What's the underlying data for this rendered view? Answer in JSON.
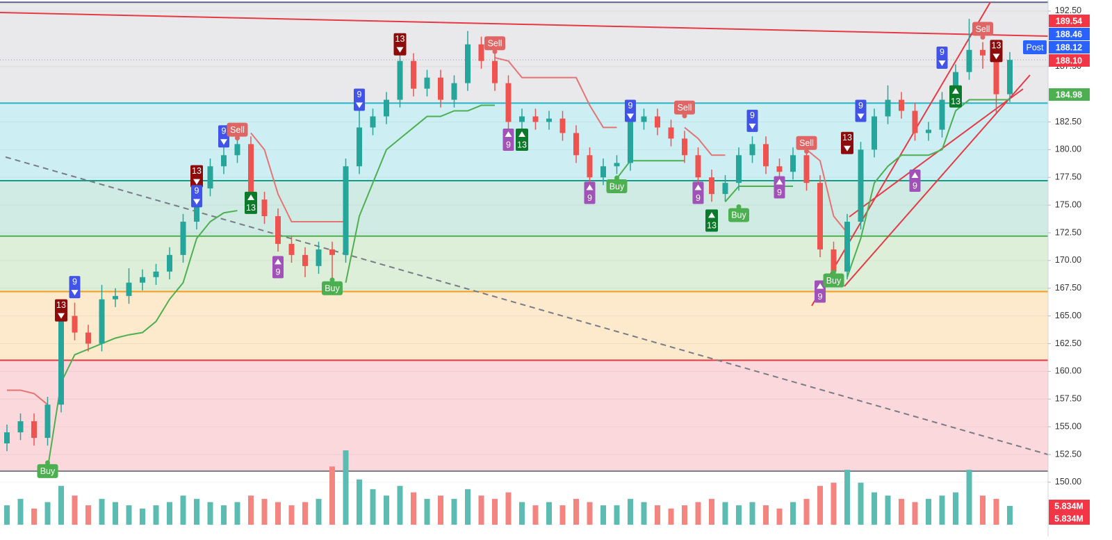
{
  "chart_data": {
    "type": "candlestick",
    "ylim": [
      145.1,
      193.5
    ],
    "yticks": [
      {
        "value": 192.5,
        "label": "192.50"
      },
      {
        "value": 187.5,
        "label": "187.50"
      },
      {
        "value": 182.5,
        "label": "182.50"
      },
      {
        "value": 180,
        "label": "180.00"
      },
      {
        "value": 177.5,
        "label": "177.50"
      },
      {
        "value": 175,
        "label": "175.00"
      },
      {
        "value": 172.5,
        "label": "172.50"
      },
      {
        "value": 170,
        "label": "170.00"
      },
      {
        "value": 167.5,
        "label": "167.50"
      },
      {
        "value": 165,
        "label": "165.00"
      },
      {
        "value": 162.5,
        "label": "162.50"
      },
      {
        "value": 160,
        "label": "160.00"
      },
      {
        "value": 157.5,
        "label": "157.50"
      },
      {
        "value": 155,
        "label": "155.00"
      },
      {
        "value": 152.5,
        "label": "152.50"
      },
      {
        "value": 150,
        "label": "150.00"
      }
    ],
    "grid": true,
    "up_color": "#26a69a",
    "down_color": "#ef5350",
    "volume_up_color": "#5dbcb2",
    "volume_down_color": "#f3847f",
    "open": [
      153.5,
      154.5,
      155.5,
      154,
      157,
      165,
      163.5,
      162.5,
      166.5,
      166.8,
      168,
      168.5,
      169,
      170.5,
      173.5,
      176.5,
      178.5,
      179.5,
      180.5,
      175.5,
      174,
      171.5,
      170.5,
      169.5,
      171,
      170.5,
      178.5,
      182,
      183,
      184.5,
      188,
      185.5,
      186.5,
      184.5,
      186,
      189.5,
      188,
      186,
      182.5,
      183,
      182.5,
      182.8,
      181.5,
      179.5,
      177.5,
      178.5,
      178.8,
      182.5,
      183,
      182,
      181,
      179.5,
      177.5,
      176,
      177,
      179.5,
      180.5,
      178.5,
      178,
      179.5,
      177,
      171,
      169,
      173.5,
      180,
      183,
      184.5,
      183.5,
      181.5,
      181.8,
      184.5,
      187,
      189,
      188.5,
      185
    ],
    "high": [
      155.2,
      156.2,
      156.2,
      157.7,
      165.7,
      166.2,
      164.2,
      167.8,
      167.5,
      169.3,
      169.2,
      169.7,
      171.2,
      174.2,
      177.2,
      179.2,
      180.2,
      181.5,
      181.2,
      176.2,
      174.7,
      172.2,
      171.2,
      171.7,
      171.7,
      179.2,
      183.5,
      183.7,
      185.2,
      188.7,
      188.7,
      187.2,
      187.2,
      186.7,
      190.7,
      190.2,
      188.7,
      186.7,
      183.7,
      183.7,
      183.5,
      183.5,
      182.2,
      180.2,
      179.2,
      179.5,
      183.2,
      183.7,
      183.7,
      182.7,
      181.7,
      180.2,
      178.2,
      177.7,
      180.2,
      181.2,
      181.2,
      179.2,
      180.2,
      180.2,
      177.7,
      171.7,
      174.2,
      180.7,
      183.7,
      185.8,
      185.2,
      184.2,
      182.5,
      185.2,
      187.7,
      191.8,
      189.7,
      189.2,
      188.8
    ],
    "low": [
      152.8,
      153.8,
      153.3,
      153.3,
      156.3,
      162.8,
      161.8,
      161.8,
      165.8,
      166.1,
      167.3,
      167.8,
      168.3,
      169.8,
      172.8,
      175.8,
      177.8,
      178.8,
      174.8,
      173.3,
      170.8,
      169.8,
      168.5,
      168.8,
      168.2,
      169.8,
      177.8,
      181.3,
      182.3,
      183.8,
      184.8,
      184.8,
      183.8,
      183.8,
      185.3,
      187.3,
      185.3,
      181.8,
      181.8,
      181.8,
      181.8,
      180.8,
      178.8,
      176.8,
      176.8,
      177.8,
      178.1,
      181.8,
      181.3,
      180.3,
      178.8,
      176.8,
      175.3,
      175.3,
      176.3,
      178.8,
      177.8,
      177.3,
      177.3,
      176.3,
      170.3,
      167.8,
      168.3,
      172.8,
      179.3,
      182.3,
      182.8,
      180.8,
      180.8,
      181.1,
      183.8,
      186.3,
      187.3,
      183.3,
      184.3
    ],
    "close": [
      154.5,
      155.5,
      154,
      157,
      165,
      163.5,
      162.5,
      166.5,
      166.8,
      168,
      168.5,
      169,
      170.5,
      173.5,
      176.5,
      178.5,
      179.5,
      180.5,
      175.5,
      174,
      171.5,
      170.5,
      169.5,
      171,
      170.5,
      178.5,
      182,
      183,
      184.5,
      188,
      185.5,
      186.5,
      184.5,
      186,
      189.5,
      188,
      186,
      182.5,
      183,
      182.5,
      182.8,
      181.5,
      179.5,
      177.5,
      178.5,
      178.8,
      182.5,
      183,
      182,
      181,
      179.5,
      177.5,
      176,
      177,
      179.5,
      180.5,
      178.5,
      178,
      179.5,
      177,
      171,
      169,
      173.5,
      180,
      183,
      184.5,
      183.5,
      181.5,
      181.8,
      184.5,
      187,
      189,
      188.5,
      185,
      188.1
    ],
    "volume": [
      6,
      8,
      5,
      7,
      12,
      9,
      6,
      8,
      7,
      6,
      5,
      6,
      7,
      9,
      8,
      7,
      6,
      7,
      9,
      8,
      7,
      6,
      7,
      8,
      18,
      23,
      14,
      11,
      9,
      12,
      10,
      8,
      9,
      8,
      11,
      9,
      8,
      10,
      7,
      6,
      7,
      6,
      8,
      7,
      6,
      6,
      8,
      7,
      6,
      5,
      6,
      7,
      8,
      7,
      6,
      7,
      6,
      5,
      7,
      8,
      12,
      13,
      17,
      13,
      10,
      9,
      8,
      7,
      8,
      9,
      10,
      17,
      9,
      8,
      5.834
    ],
    "vlim": [
      0,
      23
    ],
    "supertrend_up": {
      "color": "#4caf50",
      "values": [
        null,
        null,
        null,
        151.2,
        159,
        161.5,
        162,
        162.5,
        163,
        163.3,
        163.5,
        164.5,
        166.5,
        168,
        172,
        173.5,
        174.3,
        174.5,
        null,
        null,
        null,
        null,
        null,
        null,
        null,
        168,
        174,
        177,
        180,
        181,
        182,
        183,
        183,
        183.5,
        183.5,
        184,
        184,
        null,
        null,
        null,
        null,
        null,
        null,
        null,
        null,
        177.4,
        179,
        179,
        179,
        179,
        179,
        null,
        null,
        175.3,
        176.7,
        176.7,
        176.7,
        176.7,
        176.7,
        null,
        null,
        null,
        168.5,
        172,
        177,
        178.5,
        179.5,
        179.5,
        179.5,
        180,
        183.5,
        184.5,
        184.5,
        184.5,
        184.5
      ]
    },
    "supertrend_down": {
      "color": "#e57373",
      "values": [
        158.3,
        158.3,
        158,
        157,
        null,
        null,
        null,
        null,
        null,
        null,
        null,
        null,
        null,
        null,
        null,
        null,
        null,
        null,
        181.5,
        180,
        176,
        173.5,
        173.5,
        173.5,
        173.5,
        173.5,
        null,
        null,
        null,
        null,
        null,
        null,
        null,
        null,
        null,
        null,
        188.3,
        188,
        186.5,
        186.5,
        186.5,
        186.5,
        186.5,
        184,
        182,
        182,
        null,
        null,
        null,
        null,
        182,
        181,
        179.5,
        179.5,
        null,
        null,
        null,
        null,
        null,
        180,
        179,
        174,
        172.5,
        null,
        null,
        null,
        null,
        null,
        null,
        null,
        null,
        null,
        null,
        null,
        null
      ]
    },
    "levels": [
      {
        "value": 193.3,
        "line": "#5d6287",
        "fill": "#e9e9ec"
      },
      {
        "value": 184.2,
        "line": "#22b5c7",
        "fill": "#cdeff3"
      },
      {
        "value": 177.2,
        "line": "#129c86",
        "fill": "#d0ebe3"
      },
      {
        "value": 172.2,
        "line": "#4caf50",
        "fill": "#ddefd9"
      },
      {
        "value": 167.2,
        "line": "#f59c1a",
        "fill": "#fde9cb"
      },
      {
        "value": 161,
        "line": "#e53945",
        "fill": "#fbd8db"
      },
      {
        "value": 151,
        "line": "#787b86",
        "fill": "#ffffff"
      }
    ],
    "signal_colors": {
      "sell": "#e06666",
      "buy": "#4caf50",
      "up9": "#a052b8",
      "down9": "#4254e8",
      "up13": "#0b7a2b",
      "down13": "#8e0b0b"
    },
    "signals": [
      {
        "index": 3,
        "price": 151,
        "text": "Buy",
        "kind": "buy"
      },
      {
        "index": 4,
        "price": 165.5,
        "text": "13",
        "kind": "down13"
      },
      {
        "index": 5,
        "price": 167.6,
        "text": "9",
        "kind": "down9"
      },
      {
        "index": 14,
        "price": 177.6,
        "text": "13",
        "kind": "down13"
      },
      {
        "index": 14,
        "price": 175.8,
        "text": "9",
        "kind": "down9"
      },
      {
        "index": 16,
        "price": 181.2,
        "text": "9",
        "kind": "down9"
      },
      {
        "index": 17,
        "price": 181.8,
        "text": "Sell",
        "kind": "sell"
      },
      {
        "index": 18,
        "price": 175.2,
        "text": "13",
        "kind": "up13"
      },
      {
        "index": 20,
        "price": 169.4,
        "text": "9",
        "kind": "up9"
      },
      {
        "index": 24,
        "price": 167.5,
        "text": "Buy",
        "kind": "buy"
      },
      {
        "index": 26,
        "price": 184.5,
        "text": "9",
        "kind": "down9"
      },
      {
        "index": 29,
        "price": 189.5,
        "text": "13",
        "kind": "down13"
      },
      {
        "index": 36,
        "price": 189.6,
        "text": "Sell",
        "kind": "sell"
      },
      {
        "index": 37,
        "price": 180.9,
        "text": "9",
        "kind": "up9"
      },
      {
        "index": 38,
        "price": 180.9,
        "text": "13",
        "kind": "up13"
      },
      {
        "index": 43,
        "price": 176.1,
        "text": "9",
        "kind": "up9"
      },
      {
        "index": 45,
        "price": 176.7,
        "text": "Buy",
        "kind": "buy"
      },
      {
        "index": 46,
        "price": 183.5,
        "text": "9",
        "kind": "down9"
      },
      {
        "index": 50,
        "price": 183.8,
        "text": "Sell",
        "kind": "sell"
      },
      {
        "index": 51,
        "price": 176.1,
        "text": "9",
        "kind": "up9"
      },
      {
        "index": 52,
        "price": 173.6,
        "text": "13",
        "kind": "up13"
      },
      {
        "index": 54,
        "price": 174.1,
        "text": "Buy",
        "kind": "buy"
      },
      {
        "index": 55,
        "price": 182.6,
        "text": "9",
        "kind": "down9"
      },
      {
        "index": 57,
        "price": 176.6,
        "text": "9",
        "kind": "up9"
      },
      {
        "index": 59,
        "price": 180.6,
        "text": "Sell",
        "kind": "sell"
      },
      {
        "index": 60,
        "price": 167.2,
        "text": "9",
        "kind": "up9"
      },
      {
        "index": 61,
        "price": 168.2,
        "text": "Buy",
        "kind": "buy"
      },
      {
        "index": 62,
        "price": 180.6,
        "text": "13",
        "kind": "down13"
      },
      {
        "index": 63,
        "price": 183.5,
        "text": "9",
        "kind": "down9"
      },
      {
        "index": 67,
        "price": 177.2,
        "text": "9",
        "kind": "up9"
      },
      {
        "index": 69,
        "price": 188.3,
        "text": "9",
        "kind": "down9"
      },
      {
        "index": 70,
        "price": 184.8,
        "text": "13",
        "kind": "up13"
      },
      {
        "index": 72,
        "price": 190.9,
        "text": "Sell",
        "kind": "sell"
      },
      {
        "index": 73,
        "price": 188.9,
        "text": "13",
        "kind": "down13"
      }
    ],
    "price_labels": [
      {
        "value": 189.54,
        "label": "189.54",
        "color": "#f23645"
      },
      {
        "value": 188.46,
        "label": "188.46",
        "color": "#2962ff"
      },
      {
        "value": 188.12,
        "label": "188.12",
        "color": "#2962ff"
      },
      {
        "value": 188.1,
        "label": "188.10",
        "color": "#f23645"
      },
      {
        "value": 184.98,
        "label": "184.98",
        "color": "#4caf50"
      }
    ],
    "post_label": "Post",
    "volume_labels": [
      {
        "value": 5.834,
        "label": "5.834M",
        "color": "#f23645"
      },
      {
        "value": 5.834,
        "label": "5.834M",
        "color": "#f23645"
      }
    ]
  }
}
